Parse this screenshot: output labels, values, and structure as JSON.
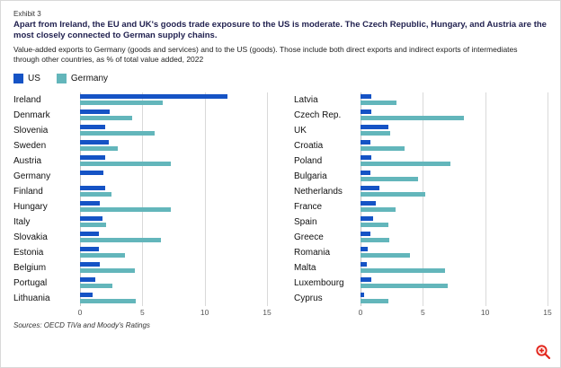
{
  "header": {
    "exhibit": "Exhibit 3",
    "title": "Apart from Ireland, the EU and UK's goods trade exposure to the US is moderate. The Czech Republic, Hungary, and Austria are the most closely connected to German supply chains.",
    "subtitle": "Value-added exports to Germany (goods and services) and to the US (goods). Those include both direct exports and indirect exports of intermediates through other countries, as % of total value added, 2022"
  },
  "legend": [
    {
      "label": "US",
      "color": "#1553c5"
    },
    {
      "label": "Germany",
      "color": "#63b6bb"
    }
  ],
  "chart_data": {
    "type": "bar",
    "orientation": "horizontal",
    "title": "Value-added exports to Germany and to the US, % of total value added, 2022",
    "xlabel": "% of total value added",
    "ylabel": "",
    "xlim": [
      0,
      15
    ],
    "ticks": [
      0,
      5,
      10,
      15
    ],
    "grid": true,
    "legend_position": "top-left",
    "panels": [
      {
        "categories": [
          "Ireland",
          "Denmark",
          "Slovenia",
          "Sweden",
          "Austria",
          "Germany",
          "Finland",
          "Hungary",
          "Italy",
          "Slovakia",
          "Estonia",
          "Belgium",
          "Portugal",
          "Lithuania"
        ],
        "series": [
          {
            "name": "US",
            "color": "#1553c5",
            "values": [
              11.8,
              2.4,
              2.0,
              2.3,
              2.0,
              1.9,
              2.0,
              1.6,
              1.8,
              1.5,
              1.5,
              1.6,
              1.2,
              1.0
            ]
          },
          {
            "name": "Germany",
            "color": "#63b6bb",
            "values": [
              6.6,
              4.2,
              6.0,
              3.0,
              7.3,
              0,
              2.5,
              7.3,
              2.1,
              6.5,
              3.6,
              4.4,
              2.6,
              4.5
            ]
          }
        ]
      },
      {
        "categories": [
          "Latvia",
          "Czech Rep.",
          "UK",
          "Croatia",
          "Poland",
          "Bulgaria",
          "Netherlands",
          "France",
          "Spain",
          "Greece",
          "Romania",
          "Malta",
          "Luxembourg",
          "Cyprus"
        ],
        "series": [
          {
            "name": "US",
            "color": "#1553c5",
            "values": [
              0.9,
              0.9,
              2.2,
              0.8,
              0.9,
              0.8,
              1.5,
              1.2,
              1.0,
              0.8,
              0.6,
              0.5,
              0.9,
              0.3
            ]
          },
          {
            "name": "Germany",
            "color": "#63b6bb",
            "values": [
              2.9,
              8.3,
              2.4,
              3.5,
              7.2,
              4.6,
              5.2,
              2.8,
              2.2,
              2.3,
              4.0,
              6.8,
              7.0,
              2.2
            ]
          }
        ]
      }
    ]
  },
  "footer": {
    "source": "Sources: OECD TiVa and Moody's Ratings"
  },
  "icons": {
    "zoom": "zoom-in-icon",
    "zoom_color": "#e2231a"
  }
}
